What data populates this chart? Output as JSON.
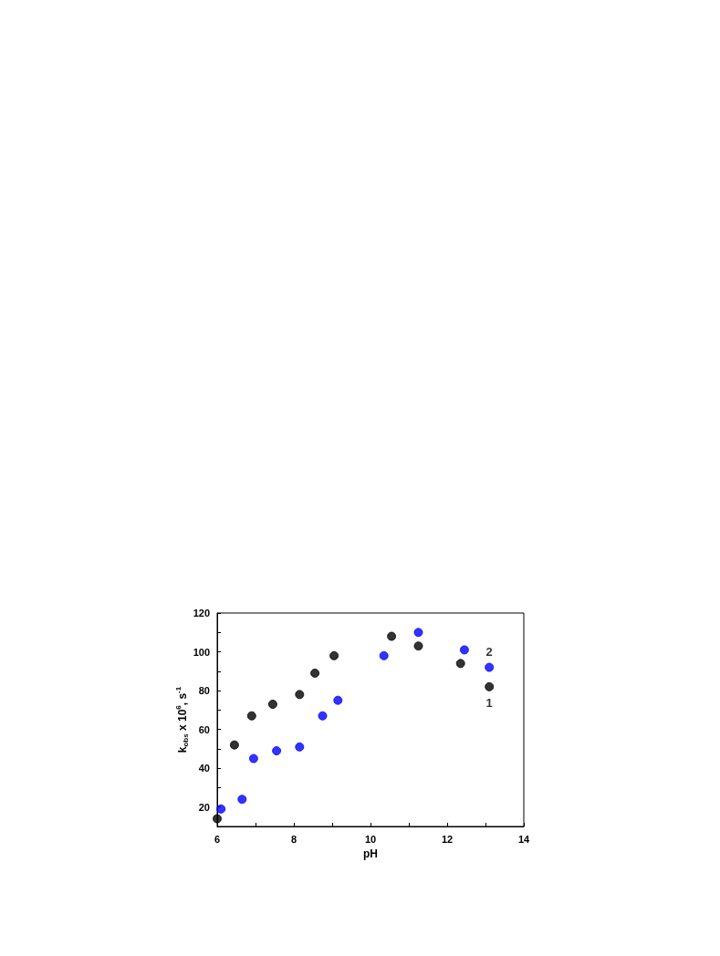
{
  "chart_data": {
    "type": "scatter",
    "xlabel": "pH",
    "ylabel": "k$_{obs}$ x 10$^{6}$, s$^{-1}$",
    "xlim": [
      6,
      14
    ],
    "xticks": [
      6,
      {
        "value": 7,
        "label": null
      },
      8,
      {
        "value": 9,
        "label": null
      },
      10,
      {
        "value": 11,
        "label": null
      },
      12,
      {
        "value": 13,
        "label": null
      },
      14
    ],
    "ylim": [
      10,
      120
    ],
    "yticks": [
      {
        "value": 10,
        "label": null
      },
      20,
      {
        "value": 30,
        "label": null
      },
      40,
      {
        "value": 50,
        "label": null
      },
      60,
      {
        "value": 70,
        "label": null
      },
      80,
      {
        "value": 90,
        "label": null
      },
      100,
      {
        "value": 110,
        "label": null
      },
      120
    ],
    "marker": "circle",
    "grid": false,
    "legend": false,
    "series": [
      {
        "name": "1",
        "color": "#000000",
        "x": [
          6.0,
          6.45,
          6.9,
          7.45,
          8.15,
          8.55,
          9.05,
          10.55,
          11.25,
          12.35,
          13.1
        ],
        "values": [
          14,
          52,
          67,
          73,
          78,
          89,
          98,
          108,
          103,
          94,
          82
        ]
      },
      {
        "name": "2",
        "color": "#0000ff",
        "x": [
          6.1,
          6.65,
          6.95,
          7.55,
          8.15,
          8.75,
          9.15,
          10.35,
          11.25,
          12.45,
          13.1
        ],
        "values": [
          19,
          24,
          45,
          49,
          51,
          67,
          75,
          98,
          110,
          101,
          92
        ]
      }
    ]
  }
}
